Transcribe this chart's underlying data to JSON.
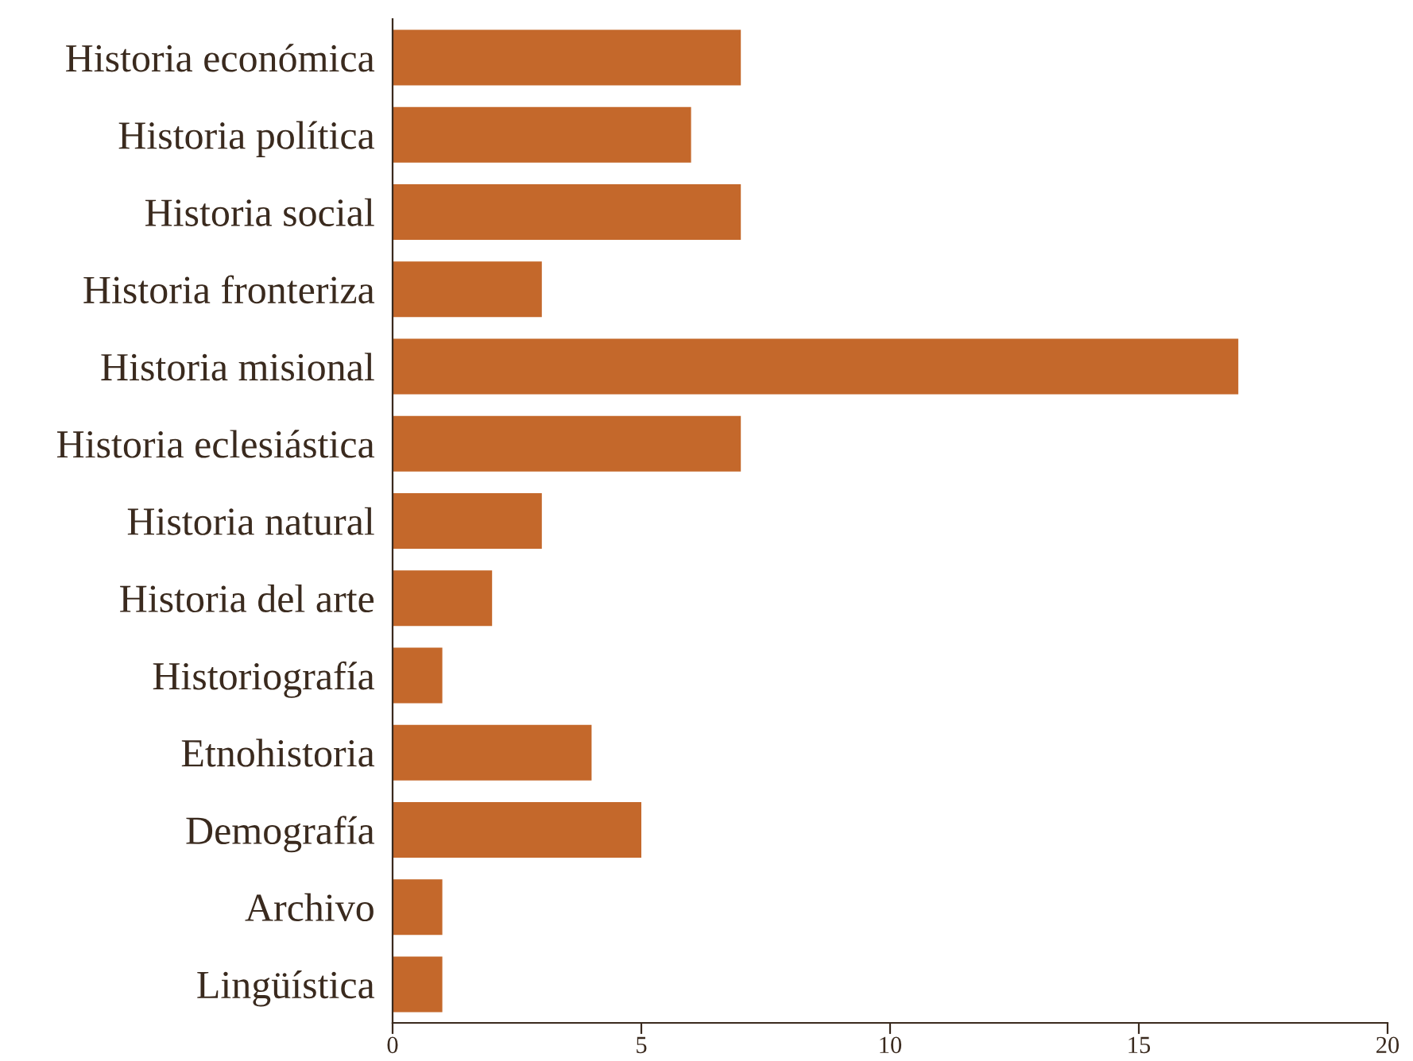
{
  "chart_data": {
    "type": "bar",
    "orientation": "horizontal",
    "categories": [
      "Historia económica",
      "Historia política",
      "Historia social",
      "Historia fronteriza",
      "Historia misional",
      "Historia eclesiástica",
      "Historia natural",
      "Historia del arte",
      "Historiografía",
      "Etnohistoria",
      "Demografía",
      "Archivo",
      "Lingüística"
    ],
    "values": [
      7,
      6,
      7,
      3,
      17,
      7,
      3,
      2,
      1,
      4,
      5,
      1,
      1
    ],
    "color": "#c4682b",
    "xlim": [
      0,
      20
    ],
    "xticks": [
      0,
      5,
      10,
      15,
      20
    ],
    "grid": false
  }
}
